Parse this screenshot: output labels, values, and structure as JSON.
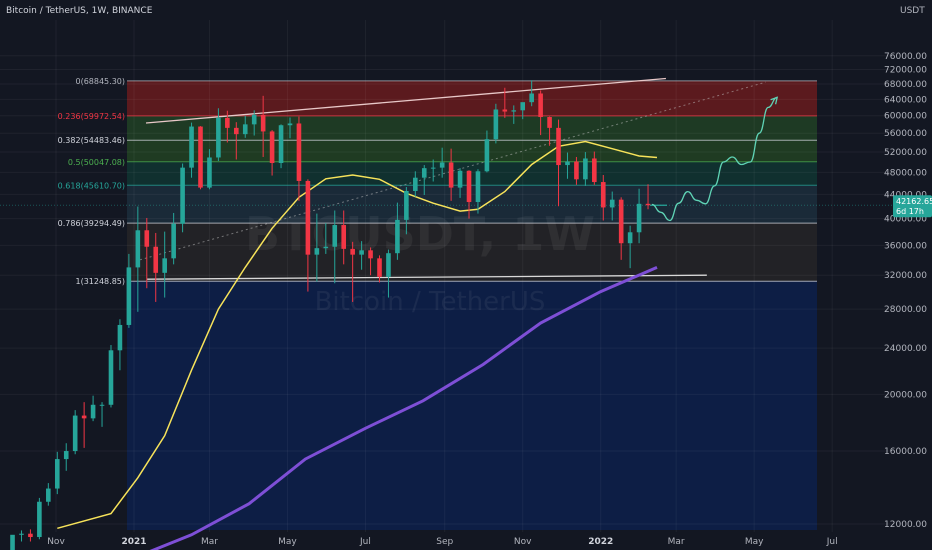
{
  "header": {
    "symbol_title": "Bitcoin / TetherUS, 1W, BINANCE",
    "currency": "USDT"
  },
  "watermark": {
    "ticker": "BTCUSDT, 1W",
    "name": "Bitcoin / TetherUS"
  },
  "price_tag": {
    "price": "42162.65",
    "countdown": "6d 17h",
    "value": 42162.65
  },
  "chart_data": {
    "type": "candlestick",
    "title": "Bitcoin / TetherUS, 1W, BINANCE",
    "y_unit": "USDT",
    "ylim": [
      10000,
      78000
    ],
    "y_scale": "log",
    "y_ticks": [
      "76000.00",
      "72000.00",
      "68000.00",
      "64000.00",
      "60000.00",
      "56000.00",
      "52000.00",
      "48000.00",
      "44000.00",
      "40000.00",
      "36000.00",
      "32000.00",
      "28000.00",
      "24000.00",
      "20000.00",
      "16000.00",
      "12000.00"
    ],
    "x_labels": [
      {
        "label": "Nov",
        "date": "2020-11-01",
        "bold": false
      },
      {
        "label": "2021",
        "date": "2021-01-01",
        "bold": true
      },
      {
        "label": "Mar",
        "date": "2021-03-01",
        "bold": false
      },
      {
        "label": "May",
        "date": "2021-05-01",
        "bold": false
      },
      {
        "label": "Jul",
        "date": "2021-07-01",
        "bold": false
      },
      {
        "label": "Sep",
        "date": "2021-09-01",
        "bold": false
      },
      {
        "label": "Nov",
        "date": "2021-11-01",
        "bold": false
      },
      {
        "label": "2022",
        "date": "2022-01-01",
        "bold": true
      },
      {
        "label": "Mar",
        "date": "2022-03-01",
        "bold": false
      },
      {
        "label": "May",
        "date": "2022-05-01",
        "bold": false
      },
      {
        "label": "Jul",
        "date": "2022-07-01",
        "bold": false
      }
    ],
    "fib_levels": [
      {
        "ratio": 0,
        "label": "0(68845.30)",
        "price": 68845.3,
        "color": "#b2b5be"
      },
      {
        "ratio": 0.236,
        "label": "0.236(59972.54)",
        "price": 59972.54,
        "color": "#f23645"
      },
      {
        "ratio": 0.382,
        "label": "0.382(54483.46)",
        "price": 54483.46,
        "color": "#d1d4dc"
      },
      {
        "ratio": 0.5,
        "label": "0.5(50047.08)",
        "price": 50047.08,
        "color": "#4caf50"
      },
      {
        "ratio": 0.618,
        "label": "0.618(45610.70)",
        "price": 45610.7,
        "color": "#26a69a"
      },
      {
        "ratio": 0.786,
        "label": "0.786(39294.49)",
        "price": 39294.49,
        "color": "#d1d4dc"
      },
      {
        "ratio": 1,
        "label": "1(31248.85)",
        "price": 31248.85,
        "color": "#d1d4dc"
      }
    ],
    "fib_zones": [
      {
        "from": 68845.3,
        "to": 59972.54,
        "color": "#5b1a1e"
      },
      {
        "from": 59972.54,
        "to": 54483.46,
        "color": "#1e3a24"
      },
      {
        "from": 54483.46,
        "to": 50047.08,
        "color": "#1f3b22"
      },
      {
        "from": 50047.08,
        "to": 45610.7,
        "color": "#10302f"
      },
      {
        "from": 45610.7,
        "to": 39294.49,
        "color": "#1a2a38"
      },
      {
        "from": 39294.49,
        "to": 31248.85,
        "color": "#222226"
      },
      {
        "from": 31248.85,
        "to": 10500,
        "color": "#0d1e45"
      }
    ],
    "candles": [
      {
        "date": "2020-09-28",
        "o": 10780,
        "h": 11300,
        "l": 10500,
        "c": 11500
      },
      {
        "date": "2020-10-05",
        "o": 11500,
        "h": 11700,
        "l": 11200,
        "c": 11550
      },
      {
        "date": "2020-10-12",
        "o": 11550,
        "h": 11750,
        "l": 11200,
        "c": 11400
      },
      {
        "date": "2020-10-19",
        "o": 11400,
        "h": 13300,
        "l": 11300,
        "c": 13100
      },
      {
        "date": "2020-10-26",
        "o": 13100,
        "h": 14100,
        "l": 12900,
        "c": 13800
      },
      {
        "date": "2020-11-02",
        "o": 13800,
        "h": 15950,
        "l": 13500,
        "c": 15500
      },
      {
        "date": "2020-11-09",
        "o": 15500,
        "h": 16500,
        "l": 14800,
        "c": 16000
      },
      {
        "date": "2020-11-16",
        "o": 16000,
        "h": 18800,
        "l": 15800,
        "c": 18400
      },
      {
        "date": "2020-11-23",
        "o": 18400,
        "h": 19400,
        "l": 16200,
        "c": 18200
      },
      {
        "date": "2020-11-30",
        "o": 18200,
        "h": 19900,
        "l": 18000,
        "c": 19200
      },
      {
        "date": "2020-12-07",
        "o": 19200,
        "h": 19400,
        "l": 17600,
        "c": 19200
      },
      {
        "date": "2020-12-14",
        "o": 19200,
        "h": 24300,
        "l": 19000,
        "c": 23800
      },
      {
        "date": "2020-12-21",
        "o": 23800,
        "h": 26900,
        "l": 22000,
        "c": 26300
      },
      {
        "date": "2020-12-28",
        "o": 26300,
        "h": 34800,
        "l": 26000,
        "c": 33000
      },
      {
        "date": "2021-01-04",
        "o": 33000,
        "h": 41950,
        "l": 27700,
        "c": 38200
      },
      {
        "date": "2021-01-11",
        "o": 38200,
        "h": 40100,
        "l": 30400,
        "c": 35800
      },
      {
        "date": "2021-01-18",
        "o": 35800,
        "h": 37800,
        "l": 28800,
        "c": 32300
      },
      {
        "date": "2021-01-25",
        "o": 32300,
        "h": 38000,
        "l": 29300,
        "c": 34200
      },
      {
        "date": "2021-02-01",
        "o": 34200,
        "h": 40900,
        "l": 33400,
        "c": 39200
      },
      {
        "date": "2021-02-08",
        "o": 39200,
        "h": 49700,
        "l": 37900,
        "c": 48900
      },
      {
        "date": "2021-02-15",
        "o": 48900,
        "h": 58400,
        "l": 47000,
        "c": 57500
      },
      {
        "date": "2021-02-22",
        "o": 57500,
        "h": 57600,
        "l": 44900,
        "c": 45200
      },
      {
        "date": "2021-03-01",
        "o": 45200,
        "h": 52600,
        "l": 44900,
        "c": 50900
      },
      {
        "date": "2021-03-08",
        "o": 50900,
        "h": 61800,
        "l": 50200,
        "c": 59500
      },
      {
        "date": "2021-03-15",
        "o": 59500,
        "h": 61200,
        "l": 54000,
        "c": 57200
      },
      {
        "date": "2021-03-22",
        "o": 57200,
        "h": 58500,
        "l": 50500,
        "c": 55800
      },
      {
        "date": "2021-03-29",
        "o": 55800,
        "h": 60000,
        "l": 55000,
        "c": 58000
      },
      {
        "date": "2021-04-05",
        "o": 58000,
        "h": 61300,
        "l": 55500,
        "c": 60200
      },
      {
        "date": "2021-04-12",
        "o": 60200,
        "h": 64900,
        "l": 51000,
        "c": 56400
      },
      {
        "date": "2021-04-19",
        "o": 56400,
        "h": 56700,
        "l": 47400,
        "c": 49800
      },
      {
        "date": "2021-04-26",
        "o": 49800,
        "h": 58000,
        "l": 48800,
        "c": 57800
      },
      {
        "date": "2021-05-03",
        "o": 57800,
        "h": 59600,
        "l": 54900,
        "c": 58200
      },
      {
        "date": "2021-05-10",
        "o": 58200,
        "h": 59800,
        "l": 42900,
        "c": 46400
      },
      {
        "date": "2021-05-17",
        "o": 46400,
        "h": 46700,
        "l": 30000,
        "c": 34700
      },
      {
        "date": "2021-05-24",
        "o": 34700,
        "h": 40800,
        "l": 31200,
        "c": 35600
      },
      {
        "date": "2021-05-31",
        "o": 35600,
        "h": 39300,
        "l": 34800,
        "c": 35800
      },
      {
        "date": "2021-06-07",
        "o": 35800,
        "h": 41300,
        "l": 31000,
        "c": 39000
      },
      {
        "date": "2021-06-14",
        "o": 39000,
        "h": 41300,
        "l": 33400,
        "c": 35500
      },
      {
        "date": "2021-06-21",
        "o": 35500,
        "h": 36500,
        "l": 28800,
        "c": 34700
      },
      {
        "date": "2021-06-28",
        "o": 34700,
        "h": 36600,
        "l": 32700,
        "c": 35300
      },
      {
        "date": "2021-07-05",
        "o": 35300,
        "h": 35700,
        "l": 32000,
        "c": 34200
      },
      {
        "date": "2021-07-12",
        "o": 34200,
        "h": 34600,
        "l": 31100,
        "c": 31800
      },
      {
        "date": "2021-07-19",
        "o": 31800,
        "h": 35400,
        "l": 29300,
        "c": 34900
      },
      {
        "date": "2021-07-26",
        "o": 34900,
        "h": 42600,
        "l": 34000,
        "c": 39800
      },
      {
        "date": "2021-08-02",
        "o": 39800,
        "h": 45300,
        "l": 37600,
        "c": 44600
      },
      {
        "date": "2021-08-09",
        "o": 44600,
        "h": 48200,
        "l": 43600,
        "c": 47000
      },
      {
        "date": "2021-08-16",
        "o": 47000,
        "h": 49400,
        "l": 43900,
        "c": 48800
      },
      {
        "date": "2021-08-23",
        "o": 48800,
        "h": 50500,
        "l": 46300,
        "c": 48900
      },
      {
        "date": "2021-08-30",
        "o": 48900,
        "h": 52900,
        "l": 47000,
        "c": 49900
      },
      {
        "date": "2021-09-06",
        "o": 49900,
        "h": 52700,
        "l": 42900,
        "c": 45200
      },
      {
        "date": "2021-09-13",
        "o": 45200,
        "h": 48800,
        "l": 43400,
        "c": 48300
      },
      {
        "date": "2021-09-20",
        "o": 48300,
        "h": 48400,
        "l": 40000,
        "c": 42700
      },
      {
        "date": "2021-09-27",
        "o": 42700,
        "h": 48600,
        "l": 40800,
        "c": 48200
      },
      {
        "date": "2021-10-04",
        "o": 48200,
        "h": 56600,
        "l": 48000,
        "c": 54700
      },
      {
        "date": "2021-10-11",
        "o": 54700,
        "h": 62900,
        "l": 53800,
        "c": 61500
      },
      {
        "date": "2021-10-18",
        "o": 61500,
        "h": 67000,
        "l": 59500,
        "c": 61000
      },
      {
        "date": "2021-10-25",
        "o": 61000,
        "h": 62500,
        "l": 58100,
        "c": 61300
      },
      {
        "date": "2021-11-01",
        "o": 61300,
        "h": 63200,
        "l": 59200,
        "c": 63300
      },
      {
        "date": "2021-11-08",
        "o": 63300,
        "h": 69000,
        "l": 62300,
        "c": 65500
      },
      {
        "date": "2021-11-15",
        "o": 65500,
        "h": 66300,
        "l": 55600,
        "c": 59700
      },
      {
        "date": "2021-11-22",
        "o": 59700,
        "h": 59800,
        "l": 53300,
        "c": 57200
      },
      {
        "date": "2021-11-29",
        "o": 57200,
        "h": 59100,
        "l": 42000,
        "c": 49400
      },
      {
        "date": "2021-12-06",
        "o": 49400,
        "h": 51900,
        "l": 46800,
        "c": 50100
      },
      {
        "date": "2021-12-13",
        "o": 50100,
        "h": 51000,
        "l": 45700,
        "c": 46700
      },
      {
        "date": "2021-12-20",
        "o": 46700,
        "h": 52000,
        "l": 45500,
        "c": 50700
      },
      {
        "date": "2021-12-27",
        "o": 50700,
        "h": 52100,
        "l": 45700,
        "c": 46200
      },
      {
        "date": "2022-01-03",
        "o": 46200,
        "h": 47500,
        "l": 39700,
        "c": 41800
      },
      {
        "date": "2022-01-10",
        "o": 41800,
        "h": 44500,
        "l": 39700,
        "c": 43100
      },
      {
        "date": "2022-01-17",
        "o": 43100,
        "h": 43500,
        "l": 34000,
        "c": 36300
      },
      {
        "date": "2022-01-24",
        "o": 36300,
        "h": 38900,
        "l": 32900,
        "c": 37900
      },
      {
        "date": "2022-01-31",
        "o": 37900,
        "h": 45000,
        "l": 36300,
        "c": 42400
      },
      {
        "date": "2022-02-07",
        "o": 42400,
        "h": 45800,
        "l": 41500,
        "c": 42162.65
      }
    ],
    "ma_short": [
      {
        "date": "2020-11-02",
        "v": 11800
      },
      {
        "date": "2020-12-14",
        "v": 12500
      },
      {
        "date": "2021-01-04",
        "v": 14400
      },
      {
        "date": "2021-01-25",
        "v": 17000
      },
      {
        "date": "2021-02-15",
        "v": 22000
      },
      {
        "date": "2021-03-08",
        "v": 28000
      },
      {
        "date": "2021-03-29",
        "v": 33000
      },
      {
        "date": "2021-04-19",
        "v": 38500
      },
      {
        "date": "2021-05-10",
        "v": 43500
      },
      {
        "date": "2021-05-31",
        "v": 46800
      },
      {
        "date": "2021-06-21",
        "v": 47500
      },
      {
        "date": "2021-07-12",
        "v": 46700
      },
      {
        "date": "2021-08-02",
        "v": 44200
      },
      {
        "date": "2021-08-23",
        "v": 42500
      },
      {
        "date": "2021-09-13",
        "v": 41200
      },
      {
        "date": "2021-09-27",
        "v": 41500
      },
      {
        "date": "2021-10-18",
        "v": 44500
      },
      {
        "date": "2021-11-08",
        "v": 49500
      },
      {
        "date": "2021-11-29",
        "v": 53200
      },
      {
        "date": "2021-12-20",
        "v": 54200
      },
      {
        "date": "2022-01-10",
        "v": 52700
      },
      {
        "date": "2022-01-31",
        "v": 51200
      },
      {
        "date": "2022-02-14",
        "v": 50900
      }
    ],
    "ma_long": [
      {
        "date": "2021-01-01",
        "v": 10500
      },
      {
        "date": "2021-02-15",
        "v": 11500
      },
      {
        "date": "2021-04-01",
        "v": 13000
      },
      {
        "date": "2021-05-15",
        "v": 15500
      },
      {
        "date": "2021-07-01",
        "v": 17500
      },
      {
        "date": "2021-08-15",
        "v": 19500
      },
      {
        "date": "2021-10-01",
        "v": 22500
      },
      {
        "date": "2021-11-15",
        "v": 26500
      },
      {
        "date": "2022-01-01",
        "v": 30000
      },
      {
        "date": "2022-02-14",
        "v": 33000
      }
    ],
    "resistance_line": [
      {
        "date": "2021-01-01",
        "v": 58300
      },
      {
        "date": "2022-02-21",
        "v": 69500
      }
    ],
    "support_line": [
      {
        "date": "2021-01-01",
        "v": 31500
      },
      {
        "date": "2022-03-25",
        "v": 32000
      }
    ],
    "diagonal_dotted": [
      {
        "date": "2021-01-01",
        "v": 34000
      },
      {
        "date": "2022-05-10",
        "v": 68500
      }
    ],
    "projection": [
      {
        "date": "2022-02-10",
        "v": 42300
      },
      {
        "date": "2022-02-17",
        "v": 41000
      },
      {
        "date": "2022-02-24",
        "v": 39700
      },
      {
        "date": "2022-03-03",
        "v": 42500
      },
      {
        "date": "2022-03-10",
        "v": 44500
      },
      {
        "date": "2022-03-17",
        "v": 43000
      },
      {
        "date": "2022-03-24",
        "v": 42400
      },
      {
        "date": "2022-03-31",
        "v": 45500
      },
      {
        "date": "2022-04-07",
        "v": 50000
      },
      {
        "date": "2022-04-14",
        "v": 51000
      },
      {
        "date": "2022-04-21",
        "v": 49500
      },
      {
        "date": "2022-04-28",
        "v": 50000
      },
      {
        "date": "2022-05-05",
        "v": 56000
      },
      {
        "date": "2022-05-12",
        "v": 62000
      },
      {
        "date": "2022-05-19",
        "v": 64500
      }
    ],
    "colors": {
      "up": "#26a69a",
      "down": "#f23645",
      "ma_short": "#f7e35a",
      "ma_long": "#7e4fd6",
      "projection": "#5fd3b5",
      "price_tag": "#26a69a"
    }
  }
}
